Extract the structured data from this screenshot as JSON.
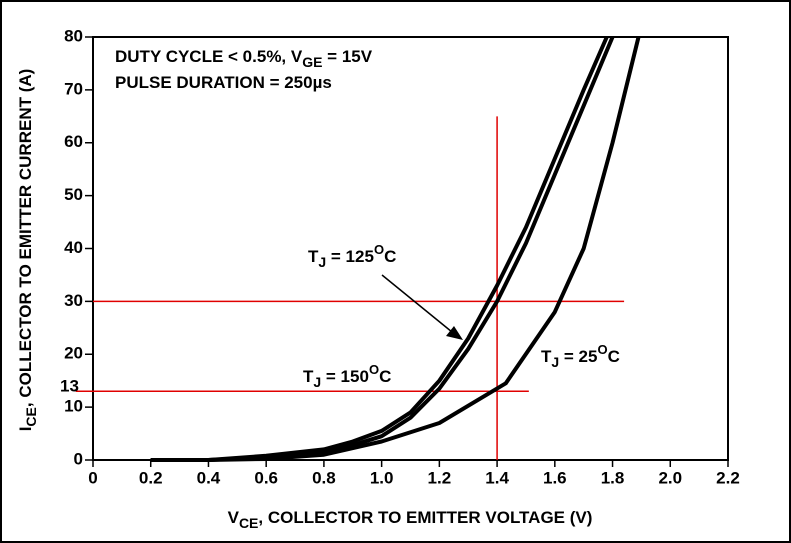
{
  "chart_data": {
    "type": "line",
    "title_lines": [
      [
        "DUTY CYCLE < 0.5%, V",
        "GE",
        " = 15V"
      ],
      [
        "PULSE DURATION = 250µs"
      ]
    ],
    "x_label": [
      "V",
      "CE",
      ", COLLECTOR TO EMITTER VOLTAGE (V)"
    ],
    "y_label": [
      "I",
      "CE",
      ", COLLECTOR TO EMITTER CURRENT (A)"
    ],
    "xlim": [
      0,
      2.2
    ],
    "xticks": [
      0,
      {
        "value": 0.2,
        "label": "0.2"
      },
      {
        "value": 0.4,
        "label": "0.4"
      },
      {
        "value": 0.6,
        "label": "0.6"
      },
      {
        "value": 0.8,
        "label": "0.8"
      },
      {
        "value": 1.0,
        "label": "1.0"
      },
      {
        "value": 1.2,
        "label": "1.2"
      },
      {
        "value": 1.4,
        "label": "1.4"
      },
      {
        "value": 1.6,
        "label": "1.6"
      },
      {
        "value": 1.8,
        "label": "1.8"
      },
      {
        "value": 2.0,
        "label": "2.0"
      },
      {
        "value": 2.2,
        "label": "2.2"
      }
    ],
    "ylim": [
      0,
      80
    ],
    "yticks": [
      0,
      10,
      20,
      30,
      40,
      50,
      60,
      70,
      80
    ],
    "series": [
      {
        "label": [
          "T",
          "J",
          " = 150",
          "O",
          "C"
        ],
        "color": "#000000",
        "x": [
          0.2,
          0.4,
          0.6,
          0.8,
          0.9,
          1.0,
          1.1,
          1.2,
          1.3,
          1.4,
          1.5,
          1.6,
          1.7,
          1.78
        ],
        "values": [
          0,
          0,
          0.8,
          2,
          3.5,
          5.5,
          9,
          15,
          23,
          33,
          44,
          57,
          70,
          80
        ]
      },
      {
        "label": [
          "T",
          "J",
          " = 125",
          "O",
          "C"
        ],
        "color": "#000000",
        "x": [
          0.2,
          0.4,
          0.6,
          0.8,
          0.9,
          1.0,
          1.1,
          1.2,
          1.3,
          1.4,
          1.5,
          1.6,
          1.7,
          1.8
        ],
        "values": [
          0,
          0,
          0.5,
          1.6,
          2.8,
          4.5,
          8,
          13.5,
          21,
          30,
          41,
          54,
          67,
          80
        ]
      },
      {
        "label": [
          "T",
          "J",
          " = 25",
          "O",
          "C"
        ],
        "color": "#000000",
        "x": [
          0.2,
          0.4,
          0.6,
          0.8,
          1.0,
          1.2,
          1.43,
          1.6,
          1.7,
          1.8,
          1.89
        ],
        "values": [
          0,
          0,
          0.2,
          1,
          3.5,
          7,
          14.5,
          28,
          40,
          60,
          80
        ]
      }
    ],
    "reference_lines": [
      {
        "x": 1.4,
        "ylim": [
          0,
          65
        ],
        "color": "#e00000"
      },
      {
        "y": 30,
        "xlim": [
          0,
          1.84
        ],
        "color": "#e00000"
      },
      {
        "y": 13,
        "xlim": [
          -0.06,
          1.51
        ],
        "color": "#e00000",
        "label": "13"
      }
    ]
  }
}
